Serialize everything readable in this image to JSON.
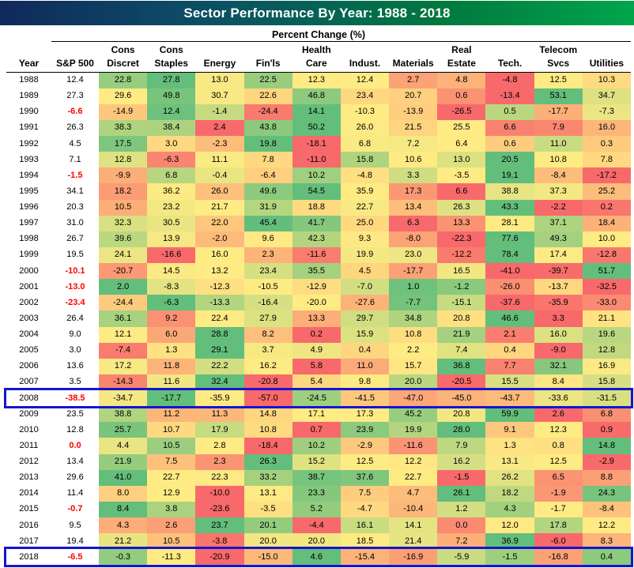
{
  "title": "Sector Performance By Year: 1988 - 2018",
  "subtitle": "Percent Change (%)",
  "columns": {
    "year_label": "Year",
    "sp500_label": "S&P 500",
    "sectors": [
      {
        "line1": "Cons",
        "line2": "Discret"
      },
      {
        "line1": "Cons",
        "line2": "Staples"
      },
      {
        "line1": "",
        "line2": "Energy"
      },
      {
        "line1": "",
        "line2": "Fin'ls"
      },
      {
        "line1": "Health",
        "line2": "Care"
      },
      {
        "line1": "",
        "line2": "Indust."
      },
      {
        "line1": "",
        "line2": "Materials"
      },
      {
        "line1": "Real",
        "line2": "Estate"
      },
      {
        "line1": "",
        "line2": "Tech."
      },
      {
        "line1": "Telecom",
        "line2": "Svcs"
      },
      {
        "line1": "",
        "line2": "Utilities"
      }
    ]
  },
  "colors": {
    "title_gradient_left": "#10295b",
    "title_gradient_mid": "#066058",
    "title_gradient_right": "#00a54c",
    "scale_min": "#F8696B",
    "scale_mid": "#FFEB84",
    "scale_max": "#63BE7B",
    "sp_negative_text": "#FF0000",
    "highlight_border": "#1414D2"
  },
  "chart_data": {
    "type": "heatmap",
    "title": "Sector Performance By Year: 1988 - 2018",
    "units": "Percent Change (%)",
    "color_scale": "per-row 3-color scale: min=#F8696B, median=#FFEB84, max=#63BE7B (sector columns only)",
    "highlighted_years": [
      2008,
      2018
    ],
    "columns": [
      "Year",
      "S&P 500",
      "Cons Discret",
      "Cons Staples",
      "Energy",
      "Fin'ls",
      "Health Care",
      "Indust.",
      "Materials",
      "Real Estate",
      "Tech.",
      "Telecom Svcs",
      "Utilities"
    ],
    "rows": [
      {
        "year": 1988,
        "sp500": 12.4,
        "sp_red": false,
        "highlight": false,
        "values": [
          22.8,
          27.8,
          13.0,
          22.5,
          12.3,
          12.4,
          2.7,
          4.8,
          -4.8,
          12.5,
          10.3
        ]
      },
      {
        "year": 1989,
        "sp500": 27.3,
        "sp_red": false,
        "highlight": false,
        "values": [
          29.6,
          49.8,
          30.7,
          22.6,
          46.8,
          23.4,
          20.7,
          0.6,
          -13.4,
          53.1,
          34.7
        ]
      },
      {
        "year": 1990,
        "sp500": -6.6,
        "sp_red": true,
        "highlight": false,
        "values": [
          -14.9,
          12.4,
          -1.4,
          -24.4,
          14.1,
          -10.3,
          -13.9,
          -26.5,
          0.5,
          -17.7,
          -7.3
        ]
      },
      {
        "year": 1991,
        "sp500": 26.3,
        "sp_red": false,
        "highlight": false,
        "values": [
          38.3,
          38.4,
          2.4,
          43.8,
          50.2,
          26.0,
          21.5,
          25.5,
          6.6,
          7.9,
          16.0
        ]
      },
      {
        "year": 1992,
        "sp500": 4.5,
        "sp_red": false,
        "highlight": false,
        "values": [
          17.5,
          3.0,
          -2.3,
          19.8,
          -18.1,
          6.8,
          7.2,
          6.4,
          0.6,
          11.0,
          0.3
        ]
      },
      {
        "year": 1993,
        "sp500": 7.1,
        "sp_red": false,
        "highlight": false,
        "values": [
          12.8,
          -6.3,
          11.1,
          7.8,
          -11.0,
          15.8,
          10.6,
          13.0,
          20.5,
          10.8,
          7.8
        ]
      },
      {
        "year": 1994,
        "sp500": -1.5,
        "sp_red": true,
        "highlight": false,
        "values": [
          -9.9,
          6.8,
          -0.4,
          -6.4,
          10.2,
          -4.8,
          3.3,
          -3.5,
          19.1,
          -8.4,
          -17.2
        ]
      },
      {
        "year": 1995,
        "sp500": 34.1,
        "sp_red": false,
        "highlight": false,
        "values": [
          18.2,
          36.2,
          26.0,
          49.6,
          54.5,
          35.9,
          17.3,
          6.6,
          38.8,
          37.3,
          25.2
        ]
      },
      {
        "year": 1996,
        "sp500": 20.3,
        "sp_red": false,
        "highlight": false,
        "values": [
          10.5,
          23.2,
          21.7,
          31.9,
          18.8,
          22.7,
          13.4,
          26.3,
          43.3,
          -2.2,
          0.2
        ]
      },
      {
        "year": 1997,
        "sp500": 31.0,
        "sp_red": false,
        "highlight": false,
        "values": [
          32.3,
          30.5,
          22.0,
          45.4,
          41.7,
          25.0,
          6.3,
          13.3,
          28.1,
          37.1,
          18.4
        ]
      },
      {
        "year": 1998,
        "sp500": 26.7,
        "sp_red": false,
        "highlight": false,
        "values": [
          39.6,
          13.9,
          -2.0,
          9.6,
          42.3,
          9.3,
          -8.0,
          -22.3,
          77.6,
          49.3,
          10.0
        ]
      },
      {
        "year": 1999,
        "sp500": 19.5,
        "sp_red": false,
        "highlight": false,
        "values": [
          24.1,
          -16.6,
          16.0,
          2.3,
          -11.6,
          19.9,
          23.0,
          -12.2,
          78.4,
          17.4,
          -12.8
        ]
      },
      {
        "year": 2000,
        "sp500": -10.1,
        "sp_red": true,
        "highlight": false,
        "values": [
          -20.7,
          14.5,
          13.2,
          23.4,
          35.5,
          4.5,
          -17.7,
          16.5,
          -41.0,
          -39.7,
          51.7
        ]
      },
      {
        "year": 2001,
        "sp500": -13.0,
        "sp_red": true,
        "highlight": false,
        "values": [
          2.0,
          -8.3,
          -12.3,
          -10.5,
          -12.9,
          -7.0,
          1.0,
          -1.2,
          -26.0,
          -13.7,
          -32.5
        ]
      },
      {
        "year": 2002,
        "sp500": -23.4,
        "sp_red": true,
        "highlight": false,
        "values": [
          -24.4,
          -6.3,
          -13.3,
          -16.4,
          -20.0,
          -27.6,
          -7.7,
          -15.1,
          -37.6,
          -35.9,
          -33.0
        ]
      },
      {
        "year": 2003,
        "sp500": 26.4,
        "sp_red": false,
        "highlight": false,
        "values": [
          36.1,
          9.2,
          22.4,
          27.9,
          13.3,
          29.7,
          34.8,
          20.8,
          46.6,
          3.3,
          21.1
        ]
      },
      {
        "year": 2004,
        "sp500": 9.0,
        "sp_red": false,
        "highlight": false,
        "values": [
          12.1,
          6.0,
          28.8,
          8.2,
          0.2,
          15.9,
          10.8,
          21.9,
          2.1,
          16.0,
          19.6
        ]
      },
      {
        "year": 2005,
        "sp500": 3.0,
        "sp_red": false,
        "highlight": false,
        "values": [
          -7.4,
          1.3,
          29.1,
          3.7,
          4.9,
          0.4,
          2.2,
          7.4,
          0.4,
          -9.0,
          12.8
        ]
      },
      {
        "year": 2006,
        "sp500": 13.6,
        "sp_red": false,
        "highlight": false,
        "values": [
          17.2,
          11.8,
          22.2,
          16.2,
          5.8,
          11.0,
          15.7,
          36.8,
          7.7,
          32.1,
          16.9
        ]
      },
      {
        "year": 2007,
        "sp500": 3.5,
        "sp_red": false,
        "highlight": false,
        "values": [
          -14.3,
          11.6,
          32.4,
          -20.8,
          5.4,
          9.8,
          20.0,
          -20.5,
          15.5,
          8.4,
          15.8
        ]
      },
      {
        "year": 2008,
        "sp500": -38.5,
        "sp_red": true,
        "highlight": true,
        "values": [
          -34.7,
          -17.7,
          -35.9,
          -57.0,
          -24.5,
          -41.5,
          -47.0,
          -45.0,
          -43.7,
          -33.6,
          -31.5
        ]
      },
      {
        "year": 2009,
        "sp500": 23.5,
        "sp_red": false,
        "highlight": false,
        "values": [
          38.8,
          11.2,
          11.3,
          14.8,
          17.1,
          17.3,
          45.2,
          20.8,
          59.9,
          2.6,
          6.8
        ]
      },
      {
        "year": 2010,
        "sp500": 12.8,
        "sp_red": false,
        "highlight": false,
        "values": [
          25.7,
          10.7,
          17.9,
          10.8,
          0.7,
          23.9,
          19.9,
          28.0,
          9.1,
          12.3,
          0.9
        ]
      },
      {
        "year": 2011,
        "sp500": 0.0,
        "sp_red": true,
        "highlight": false,
        "values": [
          4.4,
          10.5,
          2.8,
          -18.4,
          10.2,
          -2.9,
          -11.6,
          7.9,
          1.3,
          0.8,
          14.8
        ]
      },
      {
        "year": 2012,
        "sp500": 13.4,
        "sp_red": false,
        "highlight": false,
        "values": [
          21.9,
          7.5,
          2.3,
          26.3,
          15.2,
          12.5,
          12.2,
          16.2,
          13.1,
          12.5,
          -2.9
        ]
      },
      {
        "year": 2013,
        "sp500": 29.6,
        "sp_red": false,
        "highlight": false,
        "values": [
          41.0,
          22.7,
          22.3,
          33.2,
          38.7,
          37.6,
          22.7,
          -1.5,
          26.2,
          6.5,
          8.8
        ]
      },
      {
        "year": 2014,
        "sp500": 11.4,
        "sp_red": false,
        "highlight": false,
        "values": [
          8.0,
          12.9,
          -10.0,
          13.1,
          23.3,
          7.5,
          4.7,
          26.1,
          18.2,
          -1.9,
          24.3
        ]
      },
      {
        "year": 2015,
        "sp500": -0.7,
        "sp_red": true,
        "highlight": false,
        "values": [
          8.4,
          3.8,
          -23.6,
          -3.5,
          5.2,
          -4.7,
          -10.4,
          1.2,
          4.3,
          -1.7,
          -8.4
        ]
      },
      {
        "year": 2016,
        "sp500": 9.5,
        "sp_red": false,
        "highlight": false,
        "values": [
          4.3,
          2.6,
          23.7,
          20.1,
          -4.4,
          16.1,
          14.1,
          0.0,
          12.0,
          17.8,
          12.2
        ]
      },
      {
        "year": 2017,
        "sp500": 19.4,
        "sp_red": false,
        "highlight": false,
        "values": [
          21.2,
          10.5,
          -3.8,
          20.0,
          20.0,
          18.5,
          21.4,
          7.2,
          36.9,
          -6.0,
          8.3
        ]
      },
      {
        "year": 2018,
        "sp500": -6.5,
        "sp_red": true,
        "highlight": true,
        "values": [
          -0.3,
          -11.3,
          -20.9,
          -15.0,
          4.6,
          -15.4,
          -16.9,
          -5.9,
          -1.5,
          -16.8,
          0.4
        ]
      }
    ]
  }
}
